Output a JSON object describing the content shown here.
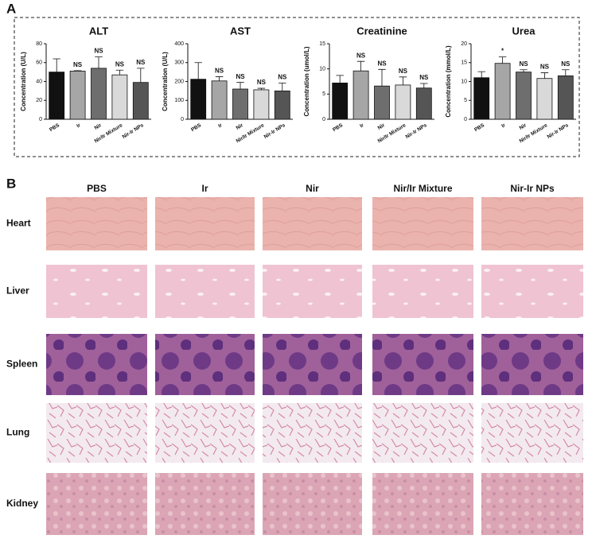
{
  "panels": [
    "A",
    "B"
  ],
  "chart_data": [
    {
      "type": "bar",
      "title": "ALT",
      "y_label": "Concentration (U/L)",
      "categories": [
        "PBS",
        "Ir",
        "Nir",
        "Nir/Ir Mixture",
        "Nir-Ir NPs"
      ],
      "values": [
        50,
        51,
        54,
        47,
        39
      ],
      "errors": [
        14,
        0.5,
        12,
        5,
        15
      ],
      "colors": [
        "#111111",
        "#a6a6a6",
        "#6e6e6e",
        "#d9d9d9",
        "#555555"
      ],
      "annotations": [
        null,
        "NS",
        "NS",
        "NS",
        "NS"
      ],
      "ylim": [
        0,
        80
      ],
      "yticks": [
        0,
        20,
        40,
        60,
        80
      ]
    },
    {
      "type": "bar",
      "title": "AST",
      "y_label": "Concentration (U/L)",
      "categories": [
        "PBS",
        "Ir",
        "Nir",
        "Nir/Ir Mixture",
        "Nir-Ir NPs"
      ],
      "values": [
        212,
        203,
        160,
        156,
        150
      ],
      "errors": [
        88,
        22,
        35,
        8,
        42
      ],
      "colors": [
        "#111111",
        "#a6a6a6",
        "#6e6e6e",
        "#d9d9d9",
        "#555555"
      ],
      "annotations": [
        null,
        "NS",
        "NS",
        "NS",
        "NS"
      ],
      "ylim": [
        0,
        400
      ],
      "yticks": [
        0,
        100,
        200,
        300,
        400
      ]
    },
    {
      "type": "bar",
      "title": "Creatinine",
      "y_label": "Concentration (umol/L)",
      "categories": [
        "PBS",
        "Ir",
        "Nir",
        "Nir/Ir Mixture",
        "Nir-Ir NPs"
      ],
      "values": [
        7.2,
        9.6,
        6.6,
        6.8,
        6.2
      ],
      "errors": [
        1.5,
        1.9,
        3.3,
        1.6,
        0.9
      ],
      "colors": [
        "#111111",
        "#a6a6a6",
        "#6e6e6e",
        "#d9d9d9",
        "#555555"
      ],
      "annotations": [
        null,
        "NS",
        "NS",
        "NS",
        "NS"
      ],
      "ylim": [
        0,
        15
      ],
      "yticks": [
        0,
        5,
        10,
        15
      ]
    },
    {
      "type": "bar",
      "title": "Urea",
      "y_label": "Concentration (mmol/L)",
      "categories": [
        "PBS",
        "Ir",
        "Nir",
        "Nir/Ir Mixture",
        "Nir-Ir NPs"
      ],
      "values": [
        11,
        14.8,
        12.5,
        10.8,
        11.5
      ],
      "errors": [
        1.6,
        1.7,
        0.6,
        1.5,
        1.6
      ],
      "colors": [
        "#111111",
        "#a6a6a6",
        "#6e6e6e",
        "#d9d9d9",
        "#555555"
      ],
      "annotations": [
        null,
        "*",
        "NS",
        "NS",
        "NS"
      ],
      "ylim": [
        0,
        20
      ],
      "yticks": [
        0,
        5,
        10,
        15,
        20
      ]
    }
  ],
  "histology": {
    "columns": [
      "PBS",
      "Ir",
      "Nir",
      "Nir/Ir Mixture",
      "Nir-Ir NPs"
    ],
    "rows": [
      "Heart",
      "Liver",
      "Spleen",
      "Lung",
      "Kidney"
    ]
  }
}
